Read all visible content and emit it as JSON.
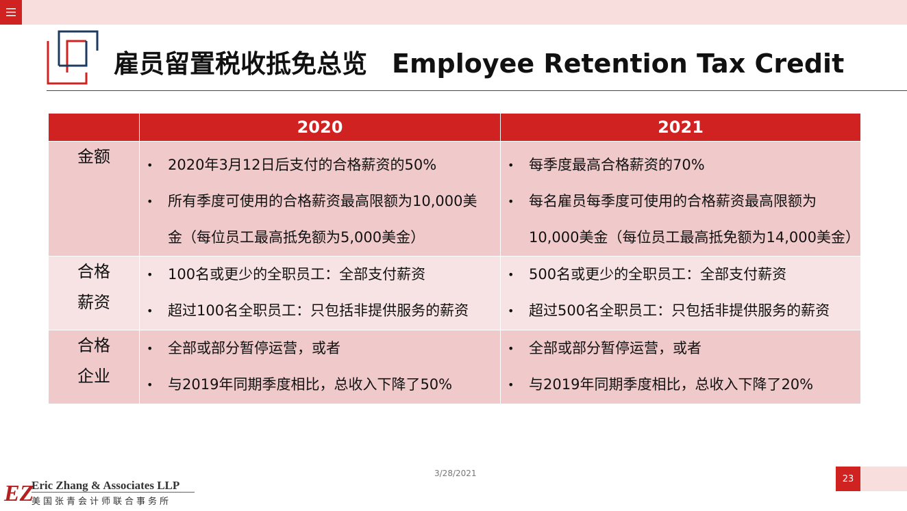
{
  "title": {
    "cn": "雇员留置税收抵免总览",
    "en": "Employee Retention Tax Credit"
  },
  "table": {
    "headers": [
      "",
      "2020",
      "2021"
    ],
    "rows": [
      {
        "head": [
          "金额"
        ],
        "col2020": [
          "2020年3月12日后支付的合格薪资的50%",
          "所有季度可使用的合格薪资最高限额为10,000美",
          "金（每位员工最高抵免额为5,000美金）"
        ],
        "col2021": [
          "每季度最高合格薪资的70%",
          "每名雇员每季度可使用的合格薪资最高限额为",
          "10,000美金（每位员工最高抵免额为14,000美金）"
        ]
      },
      {
        "head": [
          "合格",
          "薪资"
        ],
        "col2020": [
          "100名或更少的全职员工：全部支付薪资",
          "超过100名全职员工：只包括非提供服务的薪资"
        ],
        "col2021": [
          "500名或更少的全职员工：全部支付薪资",
          "超过500名全职员工：只包括非提供服务的薪资"
        ]
      },
      {
        "head": [
          "合格",
          "企业"
        ],
        "col2020": [
          "全部或部分暂停运营，或者",
          "与2019年同期季度相比，总收入下降了50%"
        ],
        "col2021": [
          "全部或部分暂停运营，或者",
          "与2019年同期季度相比，总收入下降了20%"
        ]
      }
    ]
  },
  "footer": {
    "firm_name": "Eric Zhang & Associates LLP",
    "firm_cn": "美国张青会计师联合事务所",
    "logo_letters": "EZ",
    "date": "3/28/2021",
    "page": "23"
  },
  "icons": {
    "menu": "hamburger-menu-icon",
    "title_mark": "corner-brackets-logo-icon"
  },
  "colors": {
    "accent": "#cf2221",
    "header_bar": "#f9dede",
    "row_dark": "#f0c9ca",
    "row_light": "#f8e3e4"
  }
}
